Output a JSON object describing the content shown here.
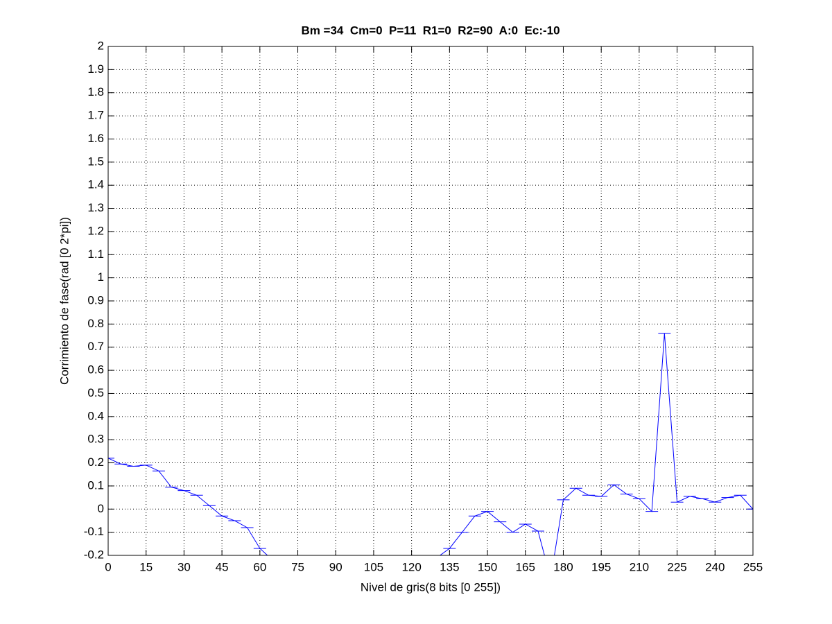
{
  "chart_data": {
    "type": "line",
    "title": "Bm =34  Cm=0  P=11  R1=0  R2=90  A:0  Ec:-10",
    "x_label": "Nivel de gris(8 bits [0 255])",
    "y_label": "Corrimiento de fase(rad [0 2*pi])",
    "x": [
      0,
      5,
      10,
      15,
      20,
      25,
      30,
      35,
      40,
      45,
      50,
      55,
      60,
      65,
      70,
      75,
      80,
      85,
      90,
      95,
      100,
      105,
      110,
      115,
      120,
      125,
      130,
      135,
      140,
      145,
      150,
      155,
      160,
      165,
      170,
      175,
      180,
      185,
      190,
      195,
      200,
      205,
      210,
      215,
      220,
      225,
      230,
      235,
      240,
      245,
      250,
      255
    ],
    "series": [
      {
        "color": "#0000ff",
        "values": [
          0.22,
          0.195,
          0.185,
          0.19,
          0.165,
          0.095,
          0.08,
          0.06,
          0.015,
          -0.03,
          -0.05,
          -0.08,
          -0.17,
          -0.22,
          null,
          null,
          null,
          null,
          null,
          null,
          null,
          null,
          null,
          null,
          null,
          null,
          -0.21,
          -0.17,
          -0.1,
          -0.03,
          -0.01,
          -0.055,
          -0.1,
          -0.065,
          -0.095,
          -0.3,
          0.04,
          0.09,
          0.06,
          0.055,
          0.105,
          0.065,
          0.045,
          -0.01,
          0.76,
          0.03,
          0.055,
          0.045,
          0.03,
          0.05,
          0.06,
          0.0
        ]
      }
    ],
    "xlim": [
      0,
      255
    ],
    "ylim": [
      -0.2,
      2
    ],
    "xticks": [
      0,
      15,
      30,
      45,
      60,
      75,
      90,
      105,
      120,
      135,
      150,
      165,
      180,
      195,
      210,
      225,
      240,
      255
    ],
    "yticks": [
      -0.2,
      -0.1,
      0,
      0.1,
      0.2,
      0.3,
      0.4,
      0.5,
      0.6,
      0.7,
      0.8,
      0.9,
      1,
      1.1,
      1.2,
      1.3,
      1.4,
      1.5,
      1.6,
      1.7,
      1.8,
      1.9,
      2
    ],
    "grid": true
  }
}
